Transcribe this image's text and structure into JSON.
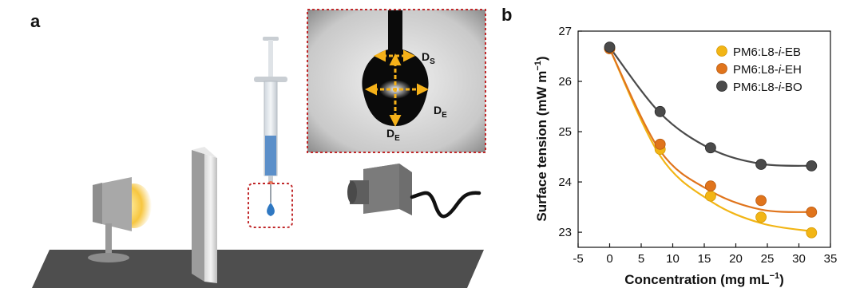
{
  "figure": {
    "panel_a_label": "a",
    "panel_b_label": "b",
    "inset_labels": {
      "ds_main": "D",
      "ds_sub": "S",
      "de_right_main": "D",
      "de_right_sub": "E",
      "de_bottom_main": "D",
      "de_bottom_sub": "E"
    }
  },
  "colors": {
    "EB": "#f2b515",
    "EH": "#e0741c",
    "BO": "#4a4a4a",
    "arrow": "#f5b119",
    "dashed_box": "#c0282a",
    "table": "#4d4d4d"
  },
  "chart_data": {
    "type": "scatter",
    "xlabel": "Concentration (mg mL",
    "xlabel_sup": "−1",
    "xlabel_end": ")",
    "ylabel": "Surface tension (mW m",
    "ylabel_sup": "−1",
    "ylabel_end": ")",
    "xlim": [
      -5,
      35
    ],
    "ylim": [
      22.7,
      27
    ],
    "xticks": [
      "-5",
      "0",
      "5",
      "10",
      "15",
      "20",
      "25",
      "30",
      "35"
    ],
    "yticks": [
      "23",
      "24",
      "25",
      "26",
      "27"
    ],
    "legend_position": "top-right",
    "series": [
      {
        "name": "PM6:L8-",
        "name_italic": "i",
        "name_end": "-EB",
        "key": "EB",
        "x": [
          0,
          8,
          16,
          24,
          32
        ],
        "y": [
          26.65,
          24.65,
          23.72,
          23.3,
          22.99
        ],
        "fit": [
          26.65,
          24.52,
          23.62,
          23.18,
          23.02
        ]
      },
      {
        "name": "PM6:L8-",
        "name_italic": "i",
        "name_end": "-EH",
        "key": "EH",
        "x": [
          0,
          8,
          16,
          24,
          32
        ],
        "y": [
          26.65,
          24.75,
          23.92,
          23.63,
          23.4
        ],
        "fit": [
          26.65,
          24.62,
          23.82,
          23.45,
          23.4
        ]
      },
      {
        "name": "PM6:L8-",
        "name_italic": "i",
        "name_end": "-BO",
        "key": "BO",
        "x": [
          0,
          8,
          16,
          24,
          32
        ],
        "y": [
          26.68,
          25.4,
          24.68,
          24.35,
          24.32
        ],
        "fit": [
          26.68,
          25.37,
          24.66,
          24.36,
          24.32
        ]
      }
    ]
  }
}
